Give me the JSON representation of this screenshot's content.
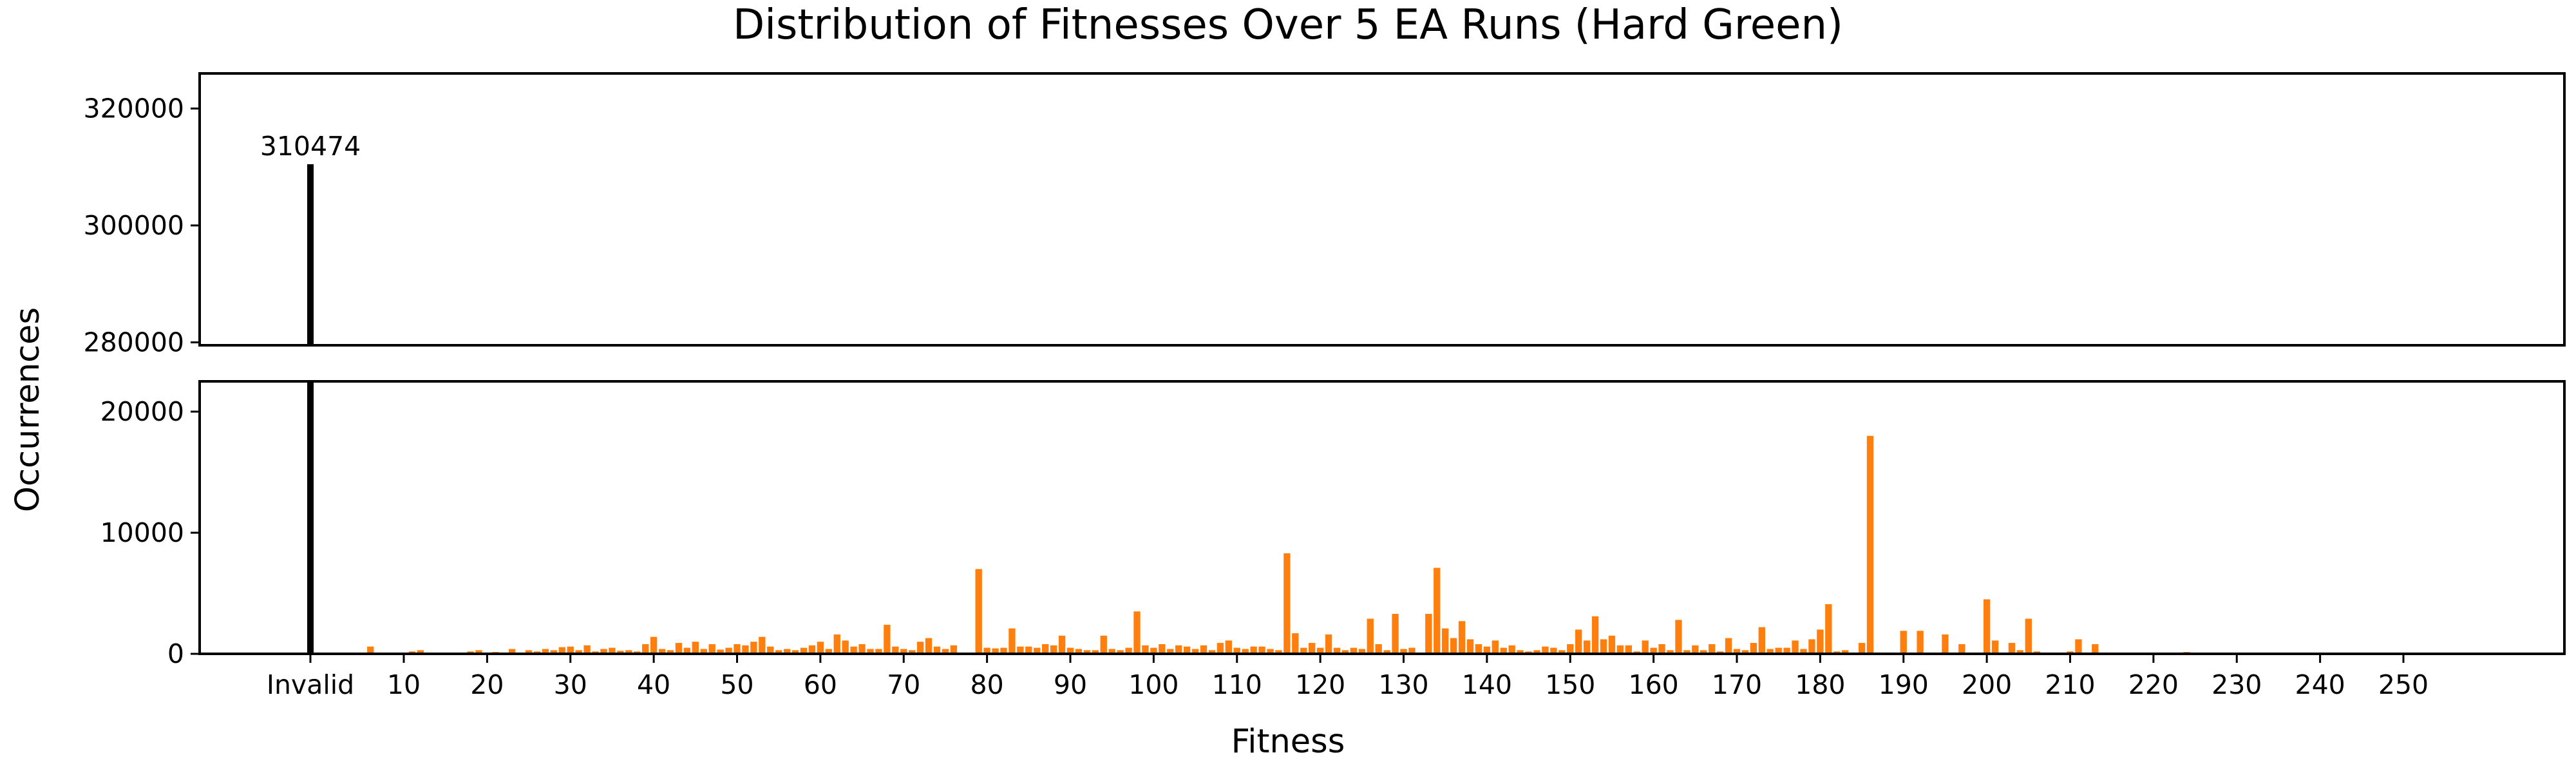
{
  "chart_data": {
    "type": "bar",
    "title": "Distribution of Fitnesses Over 5 EA Runs (Hard Green)",
    "xlabel": "Fitness",
    "ylabel": "Occurrences",
    "x_tick_labels": [
      "Invalid",
      "10",
      "20",
      "30",
      "40",
      "50",
      "60",
      "70",
      "80",
      "90",
      "100",
      "110",
      "120",
      "130",
      "140",
      "150",
      "160",
      "170",
      "180",
      "190",
      "200",
      "210",
      "220",
      "230",
      "240",
      "250"
    ],
    "broken_axis": true,
    "panels": [
      {
        "ylim": [
          279500,
          326000
        ],
        "yticks": [
          "280000",
          "300000",
          "320000"
        ]
      },
      {
        "ylim": [
          0,
          22500
        ],
        "yticks": [
          "0",
          "10000",
          "20000"
        ]
      }
    ],
    "series": [
      {
        "color": "#000000",
        "points": [
          {
            "x": "Invalid",
            "y": 310474
          }
        ]
      },
      {
        "color": "#ff7f0e",
        "points": [
          {
            "x": 6,
            "y": 600
          },
          {
            "x": 9,
            "y": 100
          },
          {
            "x": 11,
            "y": 200
          },
          {
            "x": 12,
            "y": 300
          },
          {
            "x": 15,
            "y": 100
          },
          {
            "x": 18,
            "y": 200
          },
          {
            "x": 19,
            "y": 300
          },
          {
            "x": 21,
            "y": 150
          },
          {
            "x": 22,
            "y": 100
          },
          {
            "x": 23,
            "y": 400
          },
          {
            "x": 25,
            "y": 300
          },
          {
            "x": 26,
            "y": 200
          },
          {
            "x": 27,
            "y": 400
          },
          {
            "x": 28,
            "y": 300
          },
          {
            "x": 29,
            "y": 550
          },
          {
            "x": 30,
            "y": 600
          },
          {
            "x": 31,
            "y": 300
          },
          {
            "x": 32,
            "y": 700
          },
          {
            "x": 33,
            "y": 200
          },
          {
            "x": 34,
            "y": 400
          },
          {
            "x": 35,
            "y": 500
          },
          {
            "x": 36,
            "y": 250
          },
          {
            "x": 37,
            "y": 300
          },
          {
            "x": 38,
            "y": 200
          },
          {
            "x": 39,
            "y": 800
          },
          {
            "x": 40,
            "y": 1400
          },
          {
            "x": 41,
            "y": 400
          },
          {
            "x": 42,
            "y": 300
          },
          {
            "x": 43,
            "y": 900
          },
          {
            "x": 44,
            "y": 500
          },
          {
            "x": 45,
            "y": 1000
          },
          {
            "x": 46,
            "y": 400
          },
          {
            "x": 47,
            "y": 800
          },
          {
            "x": 48,
            "y": 350
          },
          {
            "x": 49,
            "y": 500
          },
          {
            "x": 50,
            "y": 800
          },
          {
            "x": 51,
            "y": 700
          },
          {
            "x": 52,
            "y": 1000
          },
          {
            "x": 53,
            "y": 1400
          },
          {
            "x": 54,
            "y": 600
          },
          {
            "x": 55,
            "y": 300
          },
          {
            "x": 56,
            "y": 400
          },
          {
            "x": 57,
            "y": 300
          },
          {
            "x": 58,
            "y": 500
          },
          {
            "x": 59,
            "y": 700
          },
          {
            "x": 60,
            "y": 1000
          },
          {
            "x": 61,
            "y": 400
          },
          {
            "x": 62,
            "y": 1600
          },
          {
            "x": 63,
            "y": 1100
          },
          {
            "x": 64,
            "y": 600
          },
          {
            "x": 65,
            "y": 800
          },
          {
            "x": 66,
            "y": 400
          },
          {
            "x": 67,
            "y": 400
          },
          {
            "x": 68,
            "y": 2400
          },
          {
            "x": 69,
            "y": 600
          },
          {
            "x": 70,
            "y": 400
          },
          {
            "x": 71,
            "y": 300
          },
          {
            "x": 72,
            "y": 1000
          },
          {
            "x": 73,
            "y": 1300
          },
          {
            "x": 74,
            "y": 600
          },
          {
            "x": 75,
            "y": 400
          },
          {
            "x": 76,
            "y": 700
          },
          {
            "x": 79,
            "y": 7000
          },
          {
            "x": 80,
            "y": 500
          },
          {
            "x": 81,
            "y": 450
          },
          {
            "x": 82,
            "y": 500
          },
          {
            "x": 83,
            "y": 2100
          },
          {
            "x": 84,
            "y": 600
          },
          {
            "x": 85,
            "y": 600
          },
          {
            "x": 86,
            "y": 500
          },
          {
            "x": 87,
            "y": 800
          },
          {
            "x": 88,
            "y": 700
          },
          {
            "x": 89,
            "y": 1500
          },
          {
            "x": 90,
            "y": 500
          },
          {
            "x": 91,
            "y": 400
          },
          {
            "x": 92,
            "y": 300
          },
          {
            "x": 93,
            "y": 300
          },
          {
            "x": 94,
            "y": 1500
          },
          {
            "x": 95,
            "y": 400
          },
          {
            "x": 96,
            "y": 300
          },
          {
            "x": 97,
            "y": 500
          },
          {
            "x": 98,
            "y": 3500
          },
          {
            "x": 99,
            "y": 700
          },
          {
            "x": 100,
            "y": 500
          },
          {
            "x": 101,
            "y": 800
          },
          {
            "x": 102,
            "y": 400
          },
          {
            "x": 103,
            "y": 700
          },
          {
            "x": 104,
            "y": 600
          },
          {
            "x": 105,
            "y": 400
          },
          {
            "x": 106,
            "y": 700
          },
          {
            "x": 107,
            "y": 300
          },
          {
            "x": 108,
            "y": 900
          },
          {
            "x": 109,
            "y": 1100
          },
          {
            "x": 110,
            "y": 500
          },
          {
            "x": 111,
            "y": 400
          },
          {
            "x": 112,
            "y": 600
          },
          {
            "x": 113,
            "y": 600
          },
          {
            "x": 114,
            "y": 400
          },
          {
            "x": 115,
            "y": 300
          },
          {
            "x": 116,
            "y": 8300
          },
          {
            "x": 117,
            "y": 1700
          },
          {
            "x": 118,
            "y": 500
          },
          {
            "x": 119,
            "y": 900
          },
          {
            "x": 120,
            "y": 500
          },
          {
            "x": 121,
            "y": 1600
          },
          {
            "x": 122,
            "y": 500
          },
          {
            "x": 123,
            "y": 300
          },
          {
            "x": 124,
            "y": 500
          },
          {
            "x": 125,
            "y": 400
          },
          {
            "x": 126,
            "y": 2900
          },
          {
            "x": 127,
            "y": 800
          },
          {
            "x": 128,
            "y": 300
          },
          {
            "x": 129,
            "y": 3300
          },
          {
            "x": 130,
            "y": 400
          },
          {
            "x": 131,
            "y": 500
          },
          {
            "x": 133,
            "y": 3300
          },
          {
            "x": 134,
            "y": 7100
          },
          {
            "x": 135,
            "y": 2100
          },
          {
            "x": 136,
            "y": 1300
          },
          {
            "x": 137,
            "y": 2700
          },
          {
            "x": 138,
            "y": 1200
          },
          {
            "x": 139,
            "y": 800
          },
          {
            "x": 140,
            "y": 600
          },
          {
            "x": 141,
            "y": 1100
          },
          {
            "x": 142,
            "y": 500
          },
          {
            "x": 143,
            "y": 700
          },
          {
            "x": 144,
            "y": 300
          },
          {
            "x": 145,
            "y": 200
          },
          {
            "x": 146,
            "y": 300
          },
          {
            "x": 147,
            "y": 600
          },
          {
            "x": 148,
            "y": 500
          },
          {
            "x": 149,
            "y": 300
          },
          {
            "x": 150,
            "y": 800
          },
          {
            "x": 151,
            "y": 2000
          },
          {
            "x": 152,
            "y": 1100
          },
          {
            "x": 153,
            "y": 3100
          },
          {
            "x": 154,
            "y": 1200
          },
          {
            "x": 155,
            "y": 1500
          },
          {
            "x": 156,
            "y": 700
          },
          {
            "x": 157,
            "y": 700
          },
          {
            "x": 158,
            "y": 200
          },
          {
            "x": 159,
            "y": 1100
          },
          {
            "x": 160,
            "y": 500
          },
          {
            "x": 161,
            "y": 800
          },
          {
            "x": 162,
            "y": 300
          },
          {
            "x": 163,
            "y": 2800
          },
          {
            "x": 164,
            "y": 300
          },
          {
            "x": 165,
            "y": 700
          },
          {
            "x": 166,
            "y": 300
          },
          {
            "x": 167,
            "y": 800
          },
          {
            "x": 168,
            "y": 200
          },
          {
            "x": 169,
            "y": 1300
          },
          {
            "x": 170,
            "y": 400
          },
          {
            "x": 171,
            "y": 300
          },
          {
            "x": 172,
            "y": 900
          },
          {
            "x": 173,
            "y": 2200
          },
          {
            "x": 174,
            "y": 400
          },
          {
            "x": 175,
            "y": 500
          },
          {
            "x": 176,
            "y": 500
          },
          {
            "x": 177,
            "y": 1100
          },
          {
            "x": 178,
            "y": 400
          },
          {
            "x": 179,
            "y": 1200
          },
          {
            "x": 180,
            "y": 2000
          },
          {
            "x": 181,
            "y": 4100
          },
          {
            "x": 182,
            "y": 200
          },
          {
            "x": 183,
            "y": 300
          },
          {
            "x": 185,
            "y": 900
          },
          {
            "x": 186,
            "y": 18000
          },
          {
            "x": 190,
            "y": 1900
          },
          {
            "x": 192,
            "y": 1900
          },
          {
            "x": 195,
            "y": 1600
          },
          {
            "x": 197,
            "y": 800
          },
          {
            "x": 200,
            "y": 4500
          },
          {
            "x": 201,
            "y": 1100
          },
          {
            "x": 203,
            "y": 900
          },
          {
            "x": 204,
            "y": 300
          },
          {
            "x": 205,
            "y": 2900
          },
          {
            "x": 206,
            "y": 200
          },
          {
            "x": 210,
            "y": 200
          },
          {
            "x": 211,
            "y": 1200
          },
          {
            "x": 213,
            "y": 800
          },
          {
            "x": 224,
            "y": 150
          },
          {
            "x": 226,
            "y": 80
          },
          {
            "x": 231,
            "y": 80
          },
          {
            "x": 233,
            "y": 100
          },
          {
            "x": 237,
            "y": 100
          },
          {
            "x": 238,
            "y": 100
          },
          {
            "x": 240,
            "y": 80
          }
        ]
      }
    ],
    "annotations": [
      {
        "text": "310474",
        "x": "Invalid"
      }
    ]
  }
}
